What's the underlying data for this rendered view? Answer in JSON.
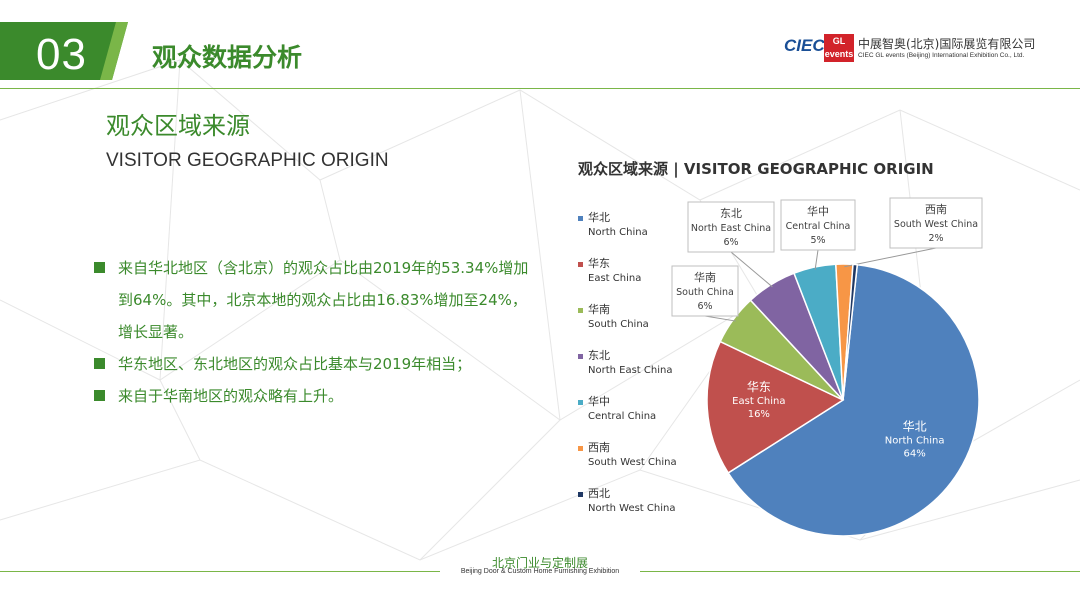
{
  "header": {
    "section_number": "03",
    "section_title": "观众数据分析"
  },
  "logo": {
    "ciec": "CIEC",
    "gl_line1": "GL",
    "gl_line2": "events",
    "cn_name": "中展智奥(北京)国际展览有限公司",
    "en_name": "CIEC GL events (Beijing) International Exhibition Co., Ltd."
  },
  "subtitle": {
    "cn": "观众区域来源",
    "en": "VISITOR GEOGRAPHIC ORIGIN"
  },
  "bullets": [
    "来自华北地区（含北京）的观众占比由2019年的53.34%增加到64%。其中，北京本地的观众占比由16.83%增加至24%，  增长显著。",
    "华东地区、东北地区的观众占比基本与2019年相当；",
    "来自于华南地区的观众略有上升。"
  ],
  "footer": {
    "cn": "北京门业与定制展",
    "en": "Beijing Door & Custom Home Furnishing Exhibition"
  },
  "colors": {
    "green": "#3b8a2c",
    "line_green": "#7ab648"
  },
  "chart_data": {
    "type": "pie",
    "title": "观众区域来源 | VISITOR GEOGRAPHIC ORIGIN",
    "legend_position": "left",
    "series": [
      {
        "name_cn": "华北",
        "name_en": "North China",
        "value": 64,
        "label": "64%",
        "color": "#4f81bd"
      },
      {
        "name_cn": "华东",
        "name_en": "East China",
        "value": 16,
        "label": "16%",
        "color": "#c0504d"
      },
      {
        "name_cn": "华南",
        "name_en": "South China",
        "value": 6,
        "label": "6%",
        "color": "#9bbb59"
      },
      {
        "name_cn": "东北",
        "name_en": "North East China",
        "value": 6,
        "label": "6%",
        "color": "#8064a2"
      },
      {
        "name_cn": "华中",
        "name_en": "Central China",
        "value": 5,
        "label": "5%",
        "color": "#4bacc6"
      },
      {
        "name_cn": "西南",
        "name_en": "South West China",
        "value": 2,
        "label": "2%",
        "color": "#f79646"
      },
      {
        "name_cn": "西北",
        "name_en": "North West China",
        "value": 0.5,
        "label": "",
        "color": "#1f3864"
      }
    ]
  }
}
